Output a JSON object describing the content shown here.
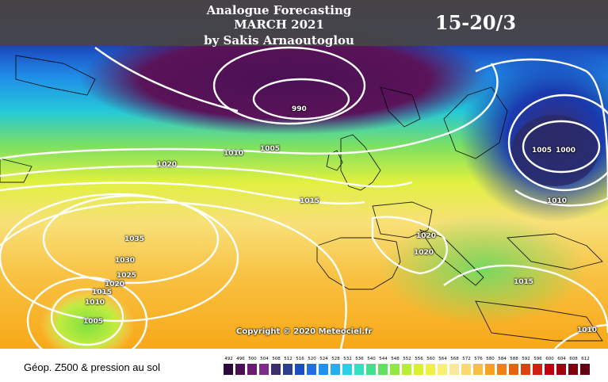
{
  "header": {
    "line1": "Analogue Forecasting",
    "line2": "MARCH 2021",
    "line3": "by Sakis Arnaoutoglou",
    "dates": "15-20/3"
  },
  "isobars": [
    {
      "label": "990"
    },
    {
      "label": "1005"
    },
    {
      "label": "1010"
    },
    {
      "label": "1020"
    },
    {
      "label": "1015"
    },
    {
      "label": "1005"
    },
    {
      "label": "1000"
    },
    {
      "label": "1010"
    },
    {
      "label": "1035"
    },
    {
      "label": "1030"
    },
    {
      "label": "1025"
    },
    {
      "label": "1020"
    },
    {
      "label": "1015"
    },
    {
      "label": "1010"
    },
    {
      "label": "1005"
    },
    {
      "label": "1020"
    },
    {
      "label": "1020"
    },
    {
      "label": "1015"
    },
    {
      "label": "1010"
    }
  ],
  "copyright": "Copyright © 2020 Meteociel.fr",
  "legend": {
    "title": "Géop. Z500 & pression au sol",
    "values": [
      "492",
      "496",
      "500",
      "504",
      "508",
      "512",
      "516",
      "520",
      "524",
      "528",
      "532",
      "536",
      "540",
      "544",
      "548",
      "552",
      "556",
      "560",
      "564",
      "568",
      "572",
      "576",
      "580",
      "584",
      "588",
      "592",
      "596",
      "600",
      "604",
      "608",
      "612"
    ],
    "colors": [
      "#2a0a3a",
      "#4a0f55",
      "#6b1a74",
      "#7d2a8a",
      "#3b2f6b",
      "#2b3f8f",
      "#1a4fc4",
      "#1f6ee6",
      "#2090f0",
      "#22b0f0",
      "#2ad0e8",
      "#30e0c0",
      "#40e090",
      "#60e060",
      "#90e840",
      "#b8ee30",
      "#d8f030",
      "#f0f040",
      "#f8f070",
      "#fbe89a",
      "#fbd870",
      "#f8c040",
      "#f8a020",
      "#f08010",
      "#e86010",
      "#e04010",
      "#d02010",
      "#c00010",
      "#a00010",
      "#800010",
      "#600010"
    ]
  }
}
